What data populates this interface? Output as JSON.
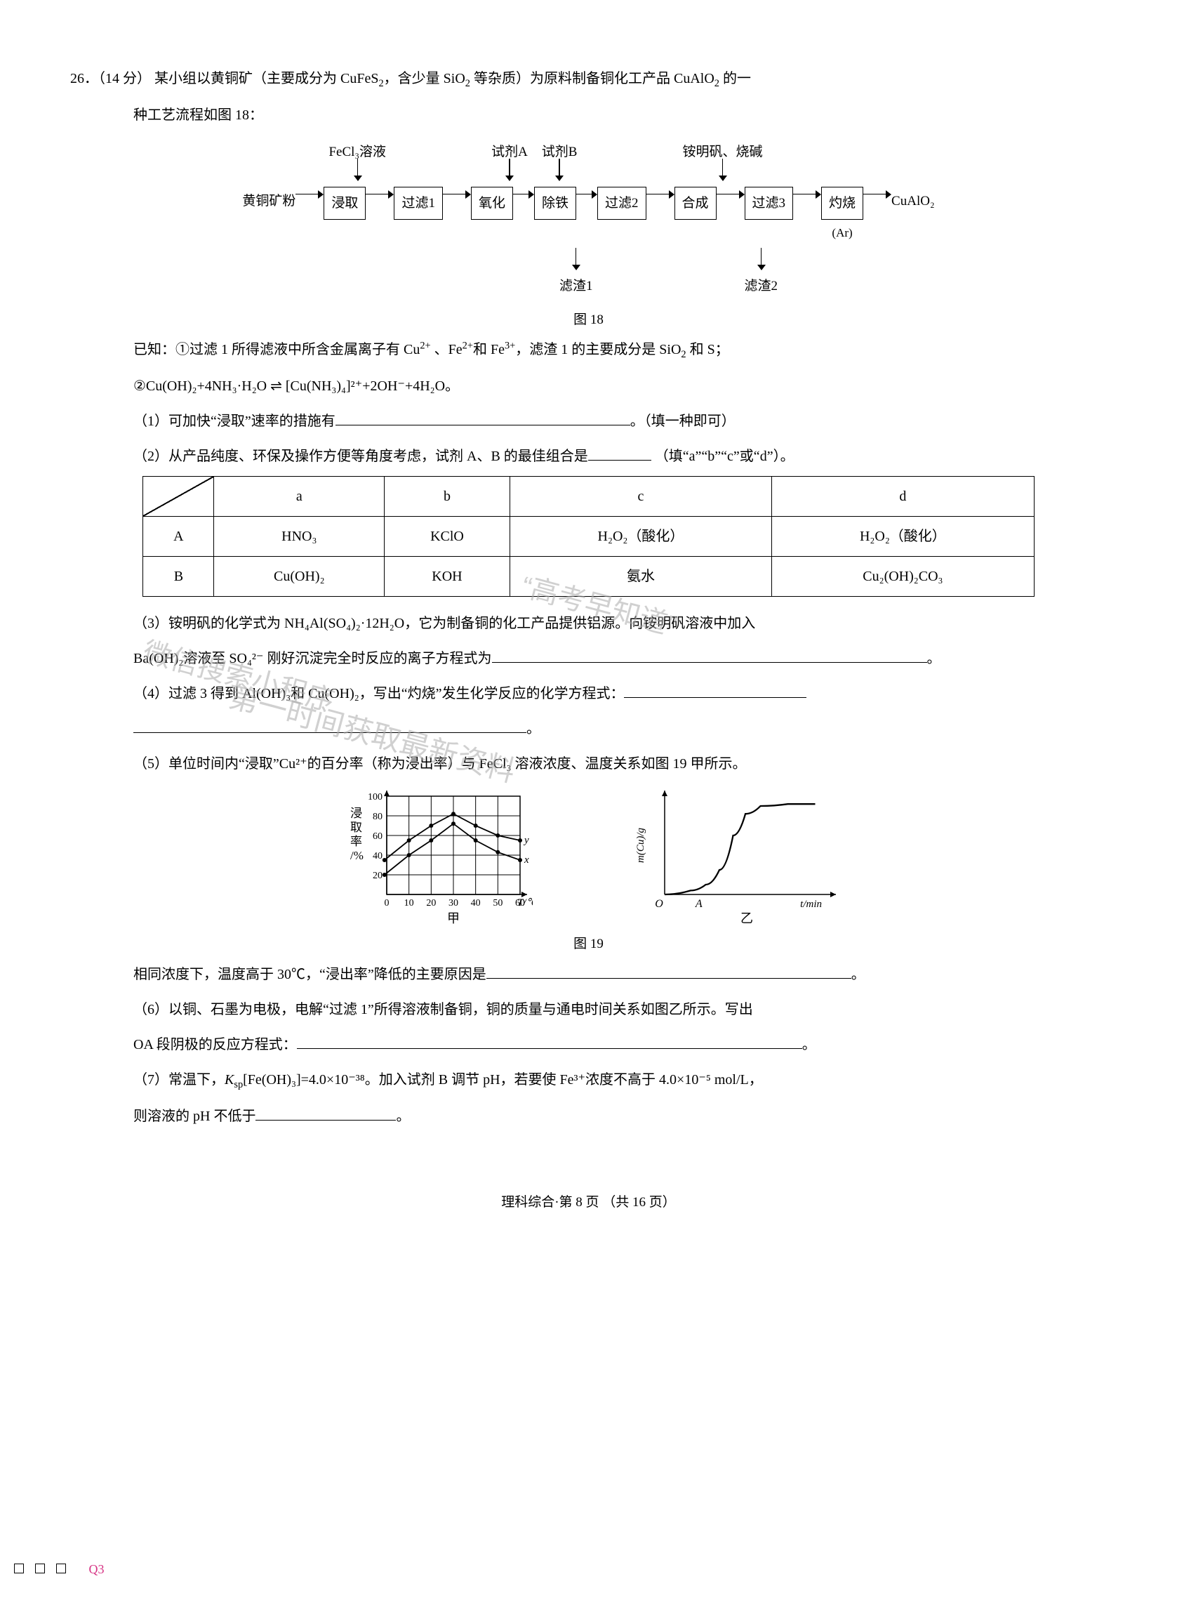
{
  "q": {
    "num": "26．",
    "points": "（14 分）",
    "stem1": " 某小组以黄铜矿（主要成分为 CuFeS",
    "stem1b": "，含少量 SiO",
    "stem1c": " 等杂质）为原料制备铜化工产品 CuAlO",
    "stem1d": " 的一",
    "stem2": "种工艺流程如图 18：",
    "known_pre": "已知：①过滤 1 所得滤液中所含金属离子有 Cu",
    "known_mid1": "、Fe",
    "known_mid2": "和 Fe",
    "known_mid3": "，滤渣 1 的主要成分是 SiO",
    "known_end": " 和 S；",
    "known2": "②Cu(OH)₂+4NH₃·H₂O ⇌ [Cu(NH₃)₄]²⁺+2OH⁻+4H₂O。",
    "p1a": "（1）可加快“浸取”速率的措施有",
    "p1b": "。（填一种即可）",
    "p2a": "（2）从产品纯度、环保及操作方便等角度考虑，试剂 A、B 的最佳组合是",
    "p2b": "（填“a”“b”“c”或“d”）。",
    "p3a": "（3）铵明矾的化学式为 NH₄Al(SO₄)₂·12H₂O，它为制备铜的化工产品提供铝源。向铵明矾溶液中加入",
    "p3b": "Ba(OH)₂溶液至 SO₄²⁻ 刚好沉淀完全时反应的离子方程式为",
    "p3c": "。",
    "p4a": "（4）过滤 3 得到 Al(OH)₃和 Cu(OH)₂，写出“灼烧”发生化学反应的化学方程式：",
    "p4b": "。",
    "p5a": "（5）单位时间内“浸取”Cu²⁺的百分率（称为浸出率）与 FeCl₃ 溶液浓度、温度关系如图 19 甲所示。",
    "p5b": "相同浓度下，温度高于 30℃，“浸出率”降低的主要原因是",
    "p5c": "。",
    "p6a": "（6）以铜、石墨为电极，电解“过滤 1”所得溶液制备铜，铜的质量与通电时间关系如图乙所示。写出",
    "p6b": "OA 段阴极的反应方程式：",
    "p6c": "。",
    "p7a": "（7）常温下，",
    "p7ksp": "K",
    "p7b": "[Fe(OH)₃]=4.0×10⁻³⁸。加入试剂 B 调节 pH，若要使 Fe³⁺浓度不高于 4.0×10⁻⁵ mol/L，",
    "p7c": "则溶液的 pH 不低于",
    "p7d": "。"
  },
  "flow": {
    "above": [
      "",
      "FeCl₃溶液",
      "",
      "试剂A",
      "试剂B",
      "",
      "铵明矾、烧碱",
      "",
      ""
    ],
    "start": "黄铜矿粉",
    "boxes": [
      "浸取",
      "过滤1",
      "氧化",
      "除铁",
      "过滤2",
      "合成",
      "过滤3",
      "灼烧"
    ],
    "under8": "(Ar)",
    "end": "CuAlO₂",
    "down1": "滤渣1",
    "down2": "滤渣2",
    "caption": "图 18"
  },
  "table": {
    "head": [
      "a",
      "b",
      "c",
      "d"
    ],
    "rowA_label": "A",
    "rowA": [
      "HNO₃",
      "KClO",
      "H₂O₂（酸化）",
      "H₂O₂（酸化）"
    ],
    "rowB_label": "B",
    "rowB": [
      "Cu(OH)₂",
      "KOH",
      "氨水",
      "Cu₂(OH)₂CO₃"
    ]
  },
  "chart1": {
    "type": "line",
    "ylabel_lines": [
      "浸",
      "取",
      "率",
      "/%"
    ],
    "xlabel": "T/℃",
    "sublabel": "甲",
    "xticks": [
      0,
      10,
      20,
      30,
      40,
      50,
      60
    ],
    "yticks": [
      0,
      20,
      40,
      60,
      80,
      100
    ],
    "xlim": [
      0,
      60
    ],
    "ylim": [
      0,
      100
    ],
    "series": {
      "y": {
        "label": "y",
        "points": [
          [
            -1,
            35
          ],
          [
            10,
            55
          ],
          [
            20,
            70
          ],
          [
            30,
            82
          ],
          [
            40,
            70
          ],
          [
            50,
            60
          ],
          [
            60,
            55
          ]
        ]
      },
      "x": {
        "label": "x",
        "points": [
          [
            -1,
            20
          ],
          [
            10,
            40
          ],
          [
            20,
            55
          ],
          [
            30,
            72
          ],
          [
            40,
            55
          ],
          [
            50,
            43
          ],
          [
            60,
            35
          ]
        ]
      }
    },
    "axis_color": "#000",
    "line_color": "#000",
    "grid_color": "#000",
    "marker": "circle",
    "marker_size": 3
  },
  "chart2": {
    "type": "line",
    "ylabel": "m(Cu)/g",
    "xlabel": "t/min",
    "sublabel": "乙",
    "x_A": "A",
    "origin": "O",
    "curve": [
      [
        0,
        0
      ],
      [
        38,
        4
      ],
      [
        60,
        10
      ],
      [
        80,
        25
      ],
      [
        100,
        60
      ],
      [
        118,
        82
      ],
      [
        140,
        90
      ],
      [
        180,
        92
      ],
      [
        220,
        92
      ]
    ],
    "axis_color": "#000",
    "line_color": "#000",
    "line_width": 2.3
  },
  "fig19": "图 19",
  "watermarks": {
    "a": "微信搜索小程序",
    "b": "“高考早知道”",
    "c": "第一时间获取最新资料"
  },
  "footer": "理科综合·第 8 页 （共 16 页）",
  "marker": "Q3"
}
